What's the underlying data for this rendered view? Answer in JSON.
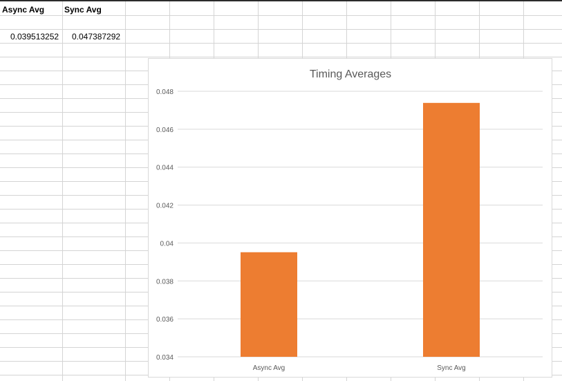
{
  "sheet": {
    "headers": [
      "Async Avg",
      "Sync Avg"
    ],
    "values": [
      "0.039513252",
      "0.047387292"
    ]
  },
  "chart_data": {
    "type": "bar",
    "title": "Timing Averages",
    "categories": [
      "Async Avg",
      "Sync Avg"
    ],
    "values": [
      0.039513252,
      0.047387292
    ],
    "ylim": [
      0.034,
      0.048
    ],
    "yticks": [
      0.034,
      0.036,
      0.038,
      0.04,
      0.042,
      0.044,
      0.046,
      0.048
    ],
    "ytick_labels": [
      "0.034",
      "0.036",
      "0.038",
      "0.04",
      "0.042",
      "0.044",
      "0.046",
      "0.048"
    ],
    "grid": true,
    "bar_color": "#ED7D31",
    "grid_color": "#D9D9D9"
  }
}
